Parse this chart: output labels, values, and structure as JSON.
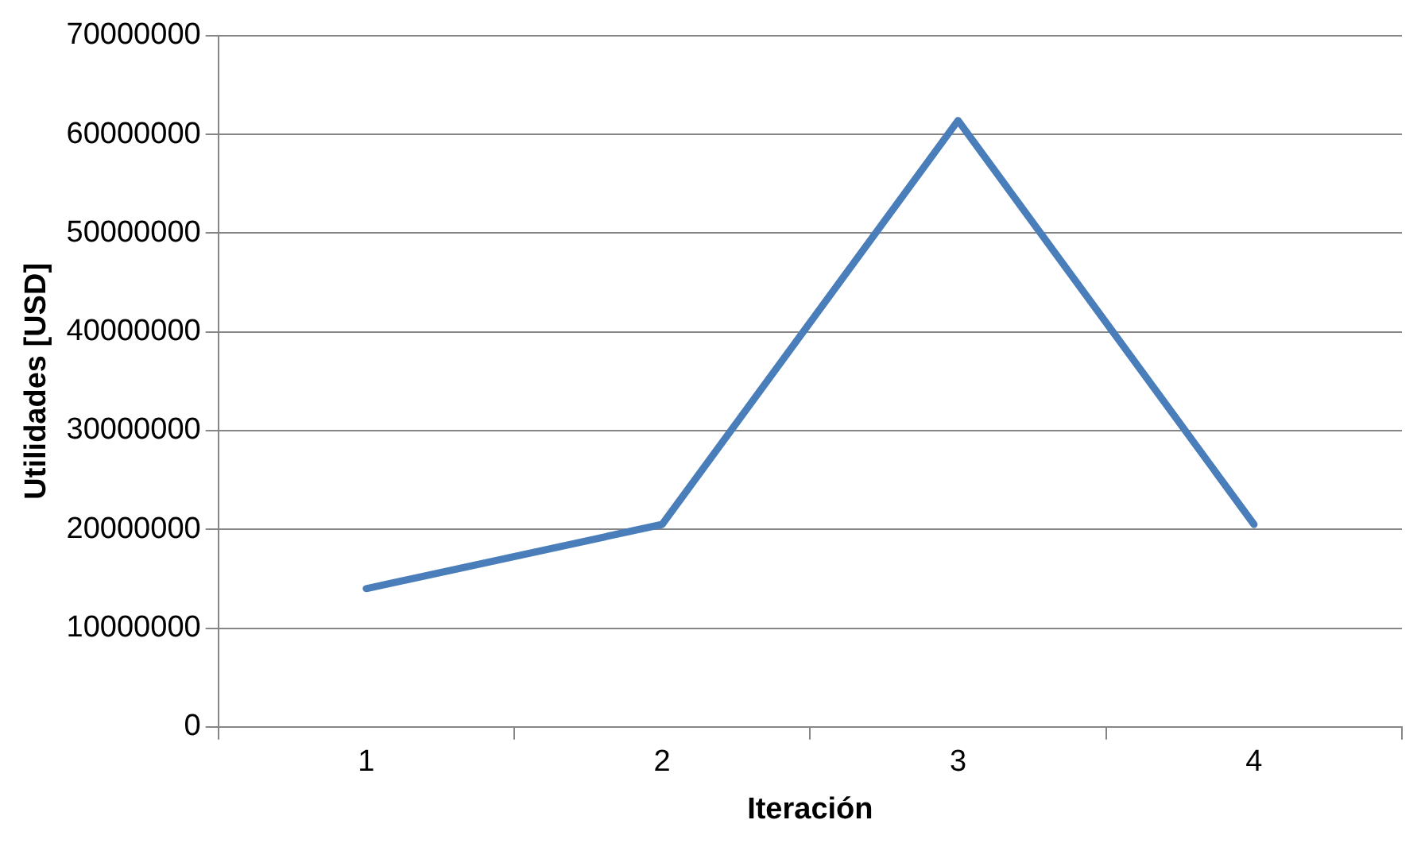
{
  "chart_data": {
    "type": "line",
    "xlabel": "Iteración",
    "ylabel": "Utilidades [USD]",
    "categories": [
      "1",
      "2",
      "3",
      "4"
    ],
    "series": [
      {
        "color": "#4a7ebb",
        "values": [
          14000000,
          20500000,
          61400000,
          20500000
        ]
      }
    ],
    "ylim": [
      0,
      70000000
    ],
    "yticks": [
      0,
      10000000,
      20000000,
      30000000,
      40000000,
      50000000,
      60000000,
      70000000
    ],
    "grid": "y",
    "legend": false,
    "marker": "none",
    "line_style": "solid"
  }
}
